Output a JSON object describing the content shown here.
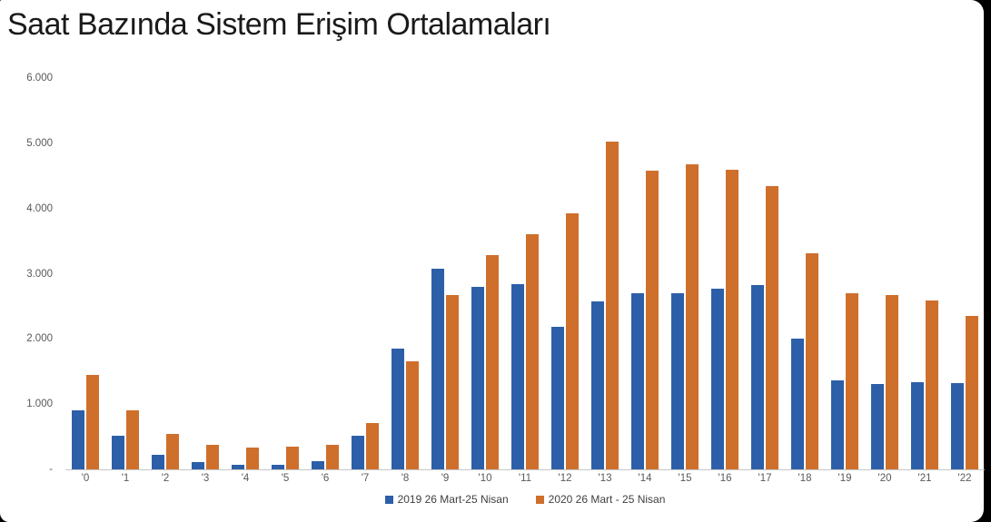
{
  "panel": {
    "background": "#ffffff",
    "outer_background": "#000000"
  },
  "chart_data": {
    "type": "bar",
    "title": "Saat Bazında Sistem Erişim Ortalamaları",
    "xlabel": "",
    "ylabel": "",
    "ylim": [
      0,
      6000
    ],
    "grid": false,
    "legend_position": "bottom",
    "yticks": [
      {
        "value": 6000,
        "label": "6.000"
      },
      {
        "value": 5000,
        "label": "5.000"
      },
      {
        "value": 4000,
        "label": "4.000"
      },
      {
        "value": 3000,
        "label": "3.000"
      },
      {
        "value": 2000,
        "label": "2.000"
      },
      {
        "value": 1000,
        "label": "1.000"
      },
      {
        "value": 0,
        "label": "-"
      }
    ],
    "categories": [
      "'0",
      "'1",
      "'2",
      "'3",
      "'4",
      "'5",
      "'6",
      "'7",
      "'8",
      "'9",
      "'10",
      "'11",
      "'12",
      "'13",
      "'14",
      "'15",
      "'16",
      "'17",
      "'18",
      "'19",
      "'20",
      "'21",
      "'22"
    ],
    "series": [
      {
        "name": "2019 26 Mart-25 Nisan",
        "color": "#2d5fa8",
        "values": [
          900,
          510,
          220,
          105,
          75,
          70,
          125,
          520,
          1850,
          3075,
          2800,
          2840,
          2180,
          2570,
          2700,
          2700,
          2775,
          2820,
          2010,
          1365,
          1315,
          1340,
          1320
        ]
      },
      {
        "name": "2020 26 Mart - 25 Nisan",
        "color": "#cf6f2c",
        "values": [
          1450,
          900,
          545,
          370,
          330,
          350,
          380,
          705,
          1650,
          2680,
          3280,
          3600,
          3920,
          5030,
          4580,
          4680,
          4600,
          4350,
          3320,
          2700,
          2670,
          2590,
          2350
        ]
      }
    ]
  }
}
